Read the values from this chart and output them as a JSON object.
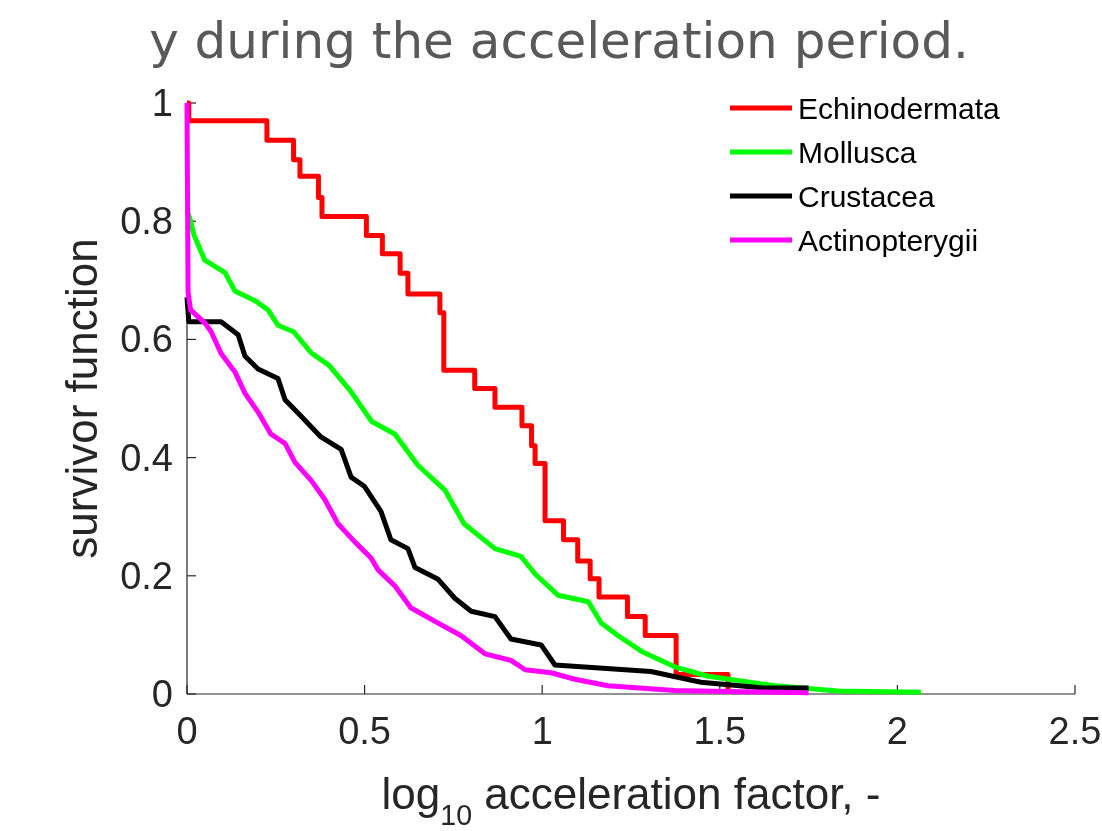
{
  "chart_data": {
    "type": "line",
    "title": "y during the acceleration period.",
    "xlabel": "log$_{10}$ acceleration factor, -",
    "ylabel": "survivor function",
    "xlim": [
      0,
      2.5
    ],
    "ylim": [
      0,
      1
    ],
    "xticks": [
      0,
      0.5,
      1,
      1.5,
      2,
      2.5
    ],
    "yticks": [
      0,
      0.2,
      0.4,
      0.6,
      0.8,
      1
    ],
    "legend": "top right",
    "grid": false,
    "line_style": "solid",
    "marker": "none",
    "series": [
      {
        "name": "Echinodermata",
        "color": "#ff0000",
        "type": "step",
        "x": [
          0,
          0.005,
          0.225,
          0.3,
          0.318,
          0.37,
          0.38,
          0.505,
          0.55,
          0.6,
          0.622,
          0.712,
          0.723,
          0.81,
          0.867,
          0.943,
          0.97,
          0.98,
          1.008,
          1.06,
          1.1,
          1.135,
          1.16,
          1.24,
          1.29,
          1.377,
          1.523
        ],
        "values": [
          1,
          0.97,
          0.937,
          0.904,
          0.876,
          0.84,
          0.808,
          0.776,
          0.745,
          0.712,
          0.677,
          0.645,
          0.548,
          0.517,
          0.485,
          0.454,
          0.42,
          0.39,
          0.293,
          0.261,
          0.225,
          0.195,
          0.164,
          0.131,
          0.099,
          0.033,
          0
        ]
      },
      {
        "name": "Mollusca",
        "color": "#00ff00",
        "x": [
          0,
          0.01,
          0.02,
          0.05,
          0.107,
          0.135,
          0.19,
          0.228,
          0.256,
          0.3,
          0.35,
          0.4,
          0.46,
          0.52,
          0.585,
          0.65,
          0.726,
          0.78,
          0.867,
          0.94,
          0.98,
          1.045,
          1.13,
          1.166,
          1.213,
          1.28,
          1.373,
          1.467,
          1.655,
          1.833,
          2.066
        ],
        "values": [
          0.82,
          0.8,
          0.776,
          0.734,
          0.713,
          0.682,
          0.666,
          0.65,
          0.624,
          0.613,
          0.577,
          0.556,
          0.513,
          0.461,
          0.44,
          0.387,
          0.345,
          0.288,
          0.246,
          0.233,
          0.203,
          0.167,
          0.156,
          0.12,
          0.099,
          0.072,
          0.046,
          0.03,
          0.014,
          0.005,
          0.003
        ]
      },
      {
        "name": "Crustacea",
        "color": "#000000",
        "x": [
          0,
          0.005,
          0.096,
          0.144,
          0.163,
          0.2,
          0.256,
          0.276,
          0.32,
          0.377,
          0.434,
          0.462,
          0.5,
          0.546,
          0.574,
          0.622,
          0.642,
          0.707,
          0.754,
          0.8,
          0.867,
          0.912,
          0.997,
          1.036,
          1.306,
          1.447,
          1.627,
          1.75
        ],
        "values": [
          0.671,
          0.63,
          0.63,
          0.608,
          0.572,
          0.55,
          0.534,
          0.498,
          0.471,
          0.435,
          0.414,
          0.367,
          0.351,
          0.309,
          0.261,
          0.246,
          0.214,
          0.194,
          0.162,
          0.14,
          0.131,
          0.093,
          0.083,
          0.049,
          0.038,
          0.02,
          0.01,
          0.01
        ]
      },
      {
        "name": "Actinopterygii",
        "color": "#ff00ff",
        "x": [
          0,
          0.003,
          0.01,
          0.05,
          0.068,
          0.096,
          0.135,
          0.163,
          0.2,
          0.236,
          0.276,
          0.304,
          0.35,
          0.388,
          0.425,
          0.473,
          0.518,
          0.538,
          0.585,
          0.63,
          0.707,
          0.771,
          0.839,
          0.912,
          0.952,
          1.025,
          1.092,
          1.185,
          1.373,
          1.56,
          1.75
        ],
        "values": [
          1,
          0.68,
          0.65,
          0.628,
          0.613,
          0.576,
          0.545,
          0.509,
          0.477,
          0.44,
          0.424,
          0.392,
          0.361,
          0.329,
          0.288,
          0.257,
          0.23,
          0.21,
          0.183,
          0.146,
          0.12,
          0.099,
          0.068,
          0.057,
          0.041,
          0.036,
          0.025,
          0.014,
          0.006,
          0.004,
          0.002
        ]
      }
    ]
  }
}
